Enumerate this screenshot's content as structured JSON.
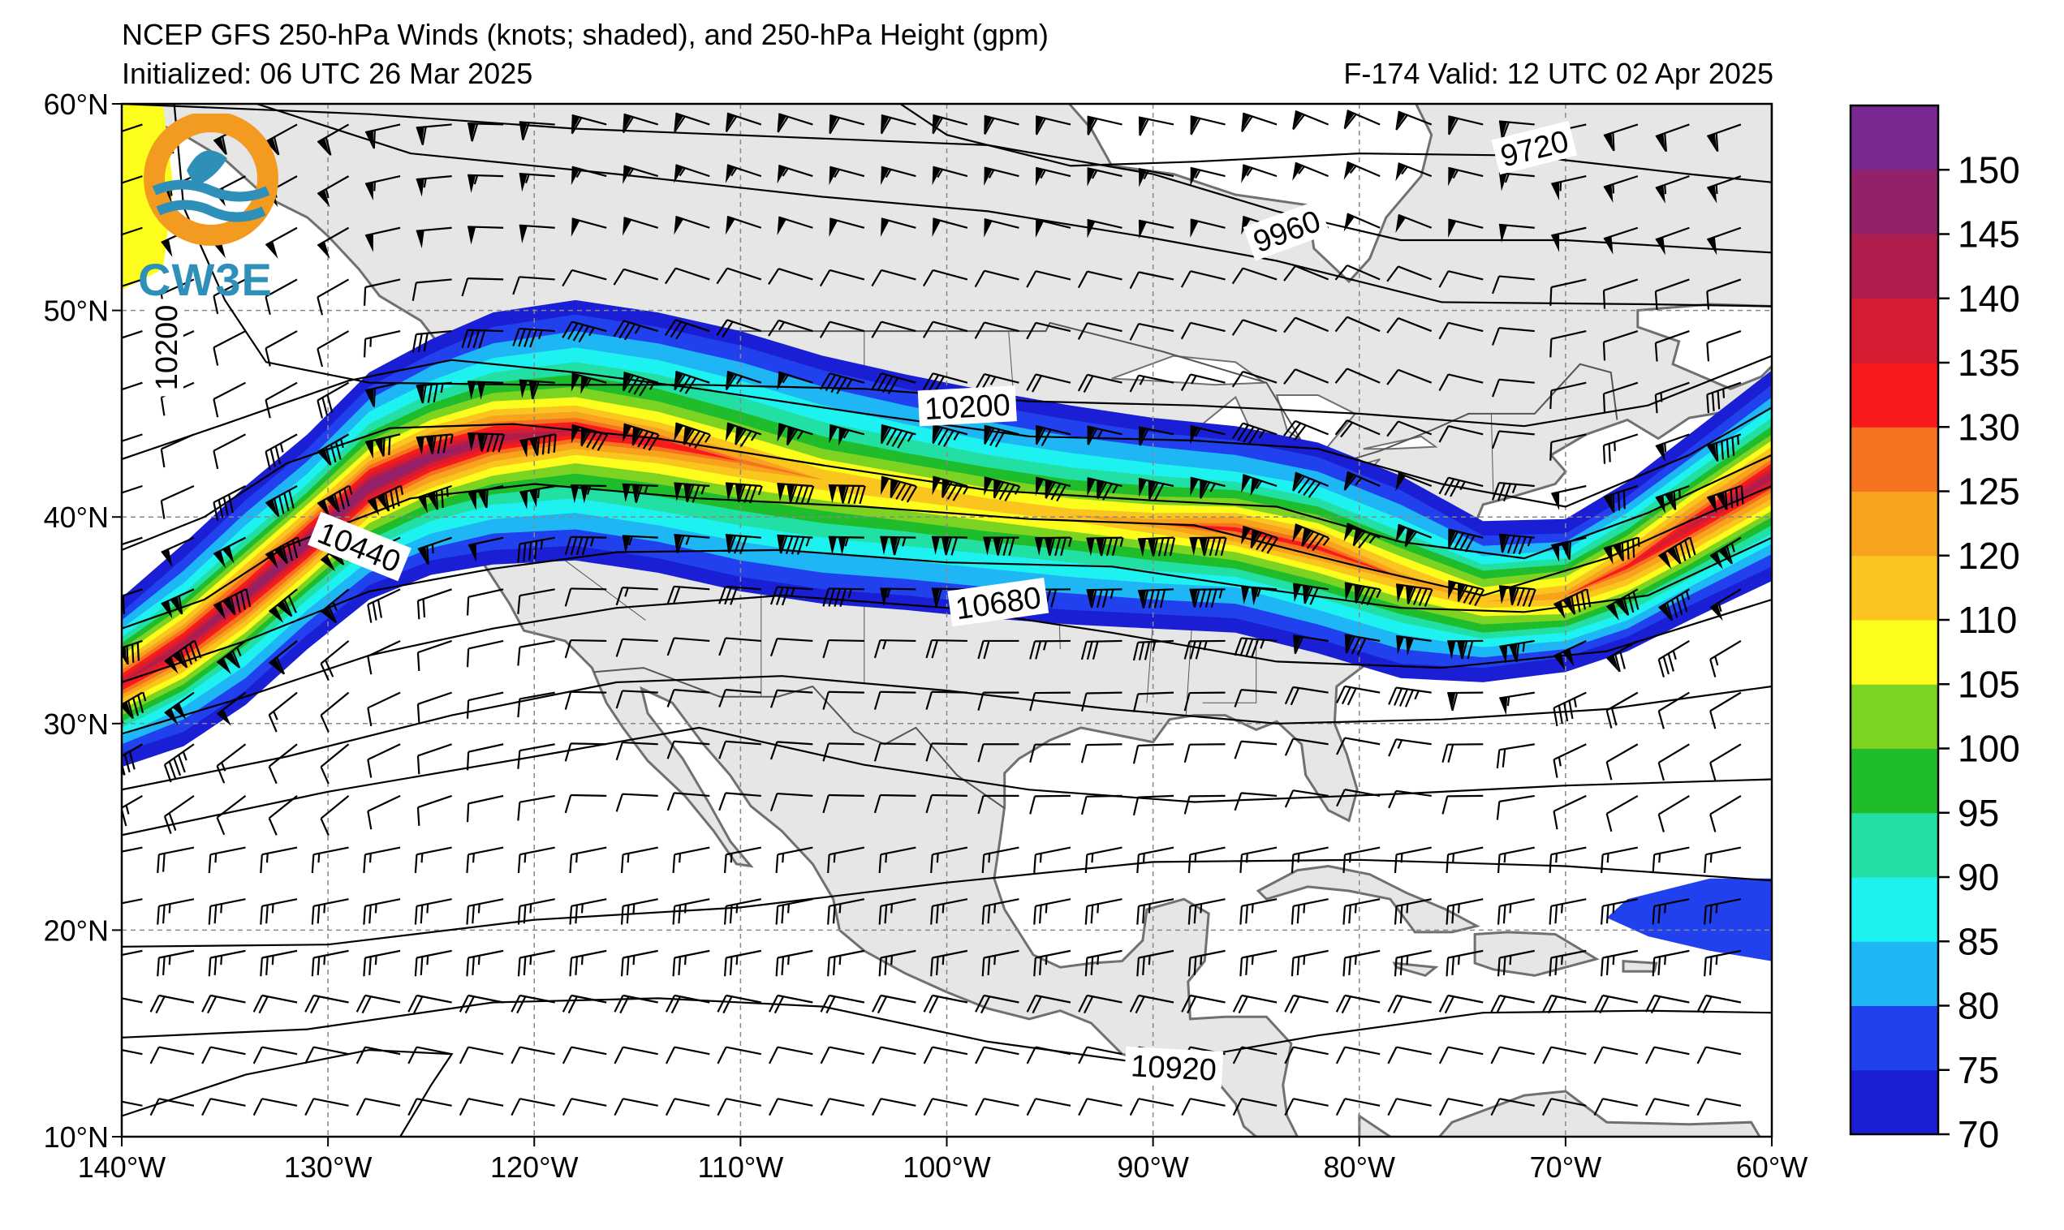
{
  "header": {
    "title": "NCEP GFS 250-hPa Winds (knots; shaded), and 250-hPa Height (gpm)",
    "initialized": "Initialized: 06 UTC 26 Mar 2025",
    "valid": "F-174  Valid: 12 UTC 02 Apr 2025"
  },
  "map": {
    "lon_range": [
      -140,
      -60
    ],
    "lat_range": [
      10,
      60
    ],
    "lon_ticks": [
      {
        "value": -140,
        "label": "140°W"
      },
      {
        "value": -130,
        "label": "130°W"
      },
      {
        "value": -120,
        "label": "120°W"
      },
      {
        "value": -110,
        "label": "110°W"
      },
      {
        "value": -100,
        "label": "100°W"
      },
      {
        "value": -90,
        "label": "90°W"
      },
      {
        "value": -80,
        "label": "80°W"
      },
      {
        "value": -70,
        "label": "70°W"
      },
      {
        "value": -60,
        "label": "60°W"
      }
    ],
    "lat_ticks": [
      {
        "value": 60,
        "label": "60°N"
      },
      {
        "value": 50,
        "label": "50°N"
      },
      {
        "value": 40,
        "label": "40°N"
      },
      {
        "value": 30,
        "label": "30°N"
      },
      {
        "value": 20,
        "label": "20°N"
      },
      {
        "value": 10,
        "label": "10°N"
      }
    ],
    "contour_labels": [
      {
        "text": "9720",
        "lon": -71.5,
        "lat": 57.8,
        "angle": 14
      },
      {
        "text": "9960",
        "lon": -83.5,
        "lat": 53.8,
        "angle": 20
      },
      {
        "text": "10200",
        "lon": -137.8,
        "lat": 48.2,
        "angle": 90
      },
      {
        "text": "10200",
        "lon": -99.0,
        "lat": 45.3,
        "angle": 3
      },
      {
        "text": "10440",
        "lon": -128.5,
        "lat": 38.5,
        "angle": -22
      },
      {
        "text": "10680",
        "lon": -97.5,
        "lat": 35.8,
        "angle": 8
      },
      {
        "text": "10920",
        "lon": -89.0,
        "lat": 13.3,
        "angle": -3
      }
    ],
    "land_color": "#e6e6e6",
    "coast_color": "#707070"
  },
  "colorbar": {
    "levels": [
      70,
      75,
      80,
      85,
      90,
      95,
      100,
      105,
      110,
      120,
      125,
      130,
      135,
      140,
      145,
      150,
      155
    ],
    "labels": [
      "70",
      "75",
      "80",
      "85",
      "90",
      "95",
      "100",
      "105",
      "110",
      "120",
      "125",
      "130",
      "135",
      "140",
      "145",
      "150"
    ],
    "colors": [
      "#1a1fd6",
      "#2140ee",
      "#1fb6f5",
      "#1ef2f0",
      "#22e0a4",
      "#1fbd2b",
      "#7dd321",
      "#fdfd1d",
      "#fbc51f",
      "#f8a21e",
      "#f6721e",
      "#f91a1c",
      "#d51c33",
      "#b01d4c",
      "#95206a",
      "#782890"
    ]
  },
  "logo": {
    "text": "CW3E",
    "colors": [
      "#f39a21",
      "#2e8fb8"
    ]
  }
}
